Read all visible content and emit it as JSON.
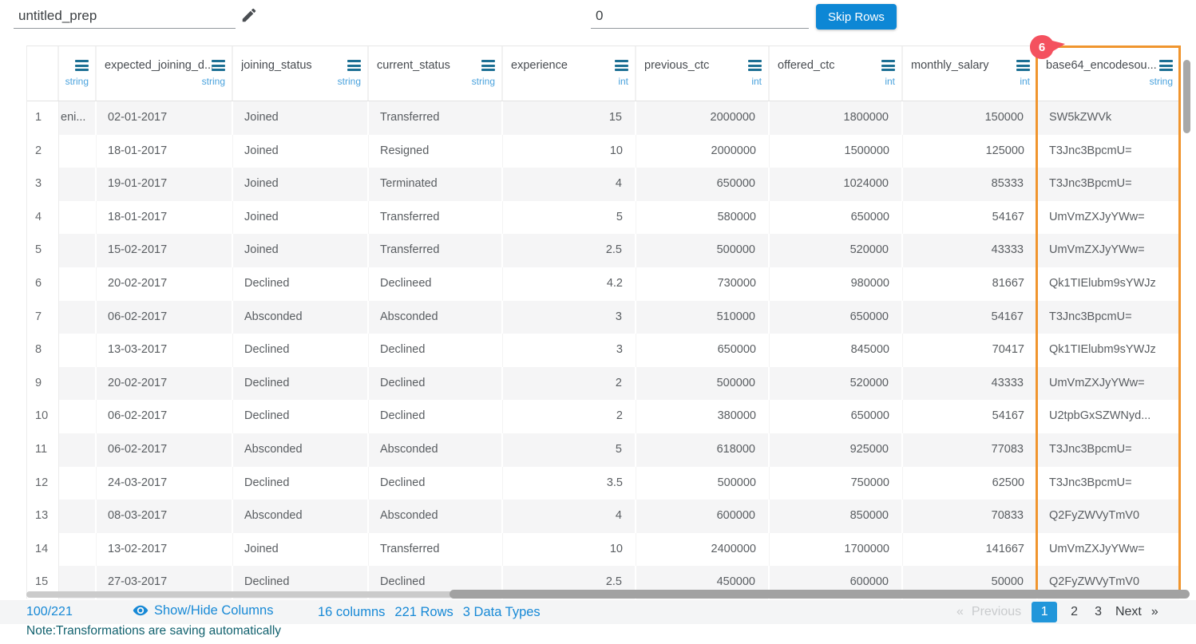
{
  "app": {
    "prep_name": "untitled_prep",
    "skip_rows_value": "0",
    "skip_rows_button": "Skip Rows"
  },
  "table": {
    "selected_column": "base64_encodesou...",
    "selected_column_badge": "6",
    "columns": [
      {
        "name": "",
        "type": "string",
        "partial": true
      },
      {
        "name": "expected_joining_d...",
        "type": "string"
      },
      {
        "name": "joining_status",
        "type": "string"
      },
      {
        "name": "current_status",
        "type": "string"
      },
      {
        "name": "experience",
        "type": "int"
      },
      {
        "name": "previous_ctc",
        "type": "int"
      },
      {
        "name": "offered_ctc",
        "type": "int"
      },
      {
        "name": "monthly_salary",
        "type": "int"
      },
      {
        "name": "base64_encodesou...",
        "type": "string",
        "selected": true
      }
    ],
    "rows": [
      {
        "n": "1",
        "cells": [
          "eni...",
          "02-01-2017",
          "Joined",
          "Transferred",
          "15",
          "2000000",
          "1800000",
          "150000",
          "SW5kZWVk"
        ]
      },
      {
        "n": "2",
        "cells": [
          "",
          "18-01-2017",
          "Joined",
          "Resigned",
          "10",
          "2000000",
          "1500000",
          "125000",
          "T3Jnc3BpcmU="
        ]
      },
      {
        "n": "3",
        "cells": [
          "",
          "19-01-2017",
          "Joined",
          "Terminated",
          "4",
          "650000",
          "1024000",
          "85333",
          "T3Jnc3BpcmU="
        ]
      },
      {
        "n": "4",
        "cells": [
          "",
          "18-01-2017",
          "Joined",
          "Transferred",
          "5",
          "580000",
          "650000",
          "54167",
          "UmVmZXJyYWw="
        ]
      },
      {
        "n": "5",
        "cells": [
          "",
          "15-02-2017",
          "Joined",
          "Transferred",
          "2.5",
          "500000",
          "520000",
          "43333",
          "UmVmZXJyYWw="
        ]
      },
      {
        "n": "6",
        "cells": [
          "",
          "20-02-2017",
          "Declined",
          "Declineed",
          "4.2",
          "730000",
          "980000",
          "81667",
          "Qk1TIElubm9sYWJz"
        ]
      },
      {
        "n": "7",
        "cells": [
          "",
          "06-02-2017",
          "Absconded",
          "Absconded",
          "3",
          "510000",
          "650000",
          "54167",
          "T3Jnc3BpcmU="
        ]
      },
      {
        "n": "8",
        "cells": [
          "",
          "13-03-2017",
          "Declined",
          "Declined",
          "3",
          "650000",
          "845000",
          "70417",
          "Qk1TIElubm9sYWJz"
        ]
      },
      {
        "n": "9",
        "cells": [
          "",
          "20-02-2017",
          "Declined",
          "Declined",
          "2",
          "500000",
          "520000",
          "43333",
          "UmVmZXJyYWw="
        ]
      },
      {
        "n": "10",
        "cells": [
          "",
          "06-02-2017",
          "Declined",
          "Declined",
          "2",
          "380000",
          "650000",
          "54167",
          "U2tpbGxSZWNyd..."
        ]
      },
      {
        "n": "11",
        "cells": [
          "",
          "06-02-2017",
          "Absconded",
          "Absconded",
          "5",
          "618000",
          "925000",
          "77083",
          "T3Jnc3BpcmU="
        ]
      },
      {
        "n": "12",
        "cells": [
          "",
          "24-03-2017",
          "Declined",
          "Declined",
          "3.5",
          "500000",
          "750000",
          "62500",
          "T3Jnc3BpcmU="
        ]
      },
      {
        "n": "13",
        "cells": [
          "",
          "08-03-2017",
          "Absconded",
          "Absconded",
          "4",
          "600000",
          "850000",
          "70833",
          "Q2FyZWVyTmV0"
        ]
      },
      {
        "n": "14",
        "cells": [
          "",
          "13-02-2017",
          "Joined",
          "Transferred",
          "10",
          "2400000",
          "1700000",
          "141667",
          "UmVmZXJyYWw="
        ]
      },
      {
        "n": "15",
        "cells": [
          "",
          "27-03-2017",
          "Declined",
          "Declined",
          "2.5",
          "450000",
          "600000",
          "50000",
          "Q2FyZWVyTmV0"
        ]
      }
    ]
  },
  "footer": {
    "page_indicator": "100/221",
    "show_hide_label": "Show/Hide Columns",
    "columns_count": "16 columns",
    "rows_count": "221 Rows",
    "datatypes_count": "3 Data Types",
    "note": "Note:Transformations are saving automatically",
    "pagination": {
      "prev_arrow": "«",
      "prev_label": "Previous",
      "pages": [
        "1",
        "2",
        "3"
      ],
      "active_page": "1",
      "next_label": "Next",
      "next_arrow": "»"
    }
  },
  "colors": {
    "accent_blue": "#1789d6",
    "button_blue": "#0d87d5",
    "active_page_blue": "#2196da",
    "selected_column_orange": "#f0952e",
    "badge_red": "#f4515f",
    "note_teal": "#11616e",
    "type_label_blue": "#49a2dd",
    "column_menu_teal": "#1c6f93",
    "row_alt_gray": "#f5f5f6"
  }
}
